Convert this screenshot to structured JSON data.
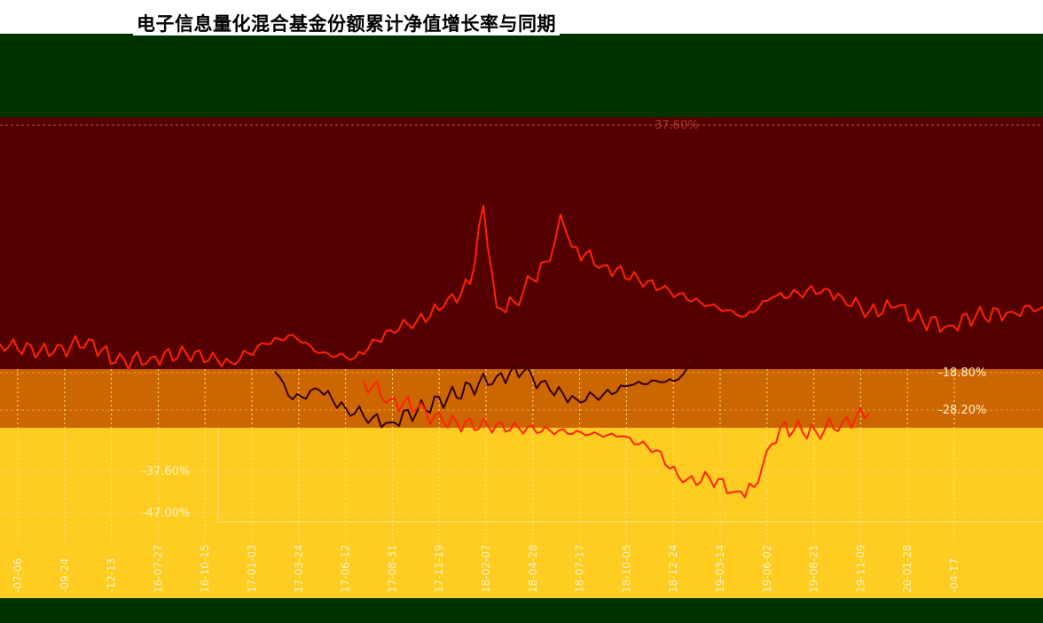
{
  "title": "电子信息量化混合基金份额累计净值增长率与同期",
  "colors": {
    "top_band": "#003300",
    "upper_band": "#550000",
    "middle_band": "#cc6600",
    "lower_band": "#ffcc22",
    "bottom_band": "#003300",
    "fund_line": "#ff2200",
    "benchmark_line": "#330000",
    "gridline": "#ffe58a"
  },
  "chart_data": {
    "type": "line",
    "title": "电子信息量化混合基金份额累计净值增长率与同期",
    "xlabel": "",
    "ylabel": "",
    "ylim": [
      -47.0,
      37.6
    ],
    "y_ticks": [
      "37.60%",
      "-18.80%",
      "-28.20%",
      "-37.60%",
      "-47.00%"
    ],
    "x_ticks": [
      {
        "year": "",
        "date": "-07-06"
      },
      {
        "year": "",
        "date": "-09-24"
      },
      {
        "year": "",
        "date": "-12-13"
      },
      {
        "year": "20",
        "date": "16-07-27"
      },
      {
        "year": "20",
        "date": "16-10-15"
      },
      {
        "year": "20",
        "date": "17-01-03"
      },
      {
        "year": "20",
        "date": "17-03-24"
      },
      {
        "year": "20",
        "date": "17-06-12"
      },
      {
        "year": "20",
        "date": "17-08-31"
      },
      {
        "year": "",
        "date": "17-11-19"
      },
      {
        "year": "",
        "date": "18-02-07"
      },
      {
        "year": "",
        "date": "18-04-28"
      },
      {
        "year": "",
        "date": "18-07-17"
      },
      {
        "year": "",
        "date": "18-10-05"
      },
      {
        "year": "",
        "date": "18-12-24"
      },
      {
        "year": "",
        "date": "19-03-14"
      },
      {
        "year": "",
        "date": "19-06-02"
      },
      {
        "year": "",
        "date": "19-08-21"
      },
      {
        "year": "",
        "date": "19-11-09"
      },
      {
        "year": "",
        "date": "20-01-28"
      },
      {
        "year": "",
        "date": "-04-17"
      }
    ],
    "series": [
      {
        "values": [
          [
            0,
            -10
          ],
          [
            60,
            -12
          ],
          [
            100,
            -9
          ],
          [
            130,
            -14
          ],
          [
            170,
            -13
          ],
          [
            210,
            -12
          ],
          [
            260,
            -14
          ],
          [
            300,
            -10
          ],
          [
            330,
            -8
          ],
          [
            360,
            -12
          ],
          [
            400,
            -13
          ],
          [
            440,
            -7
          ],
          [
            470,
            -5
          ],
          [
            500,
            -2
          ],
          [
            530,
            3
          ],
          [
            545,
            20
          ],
          [
            560,
            -2
          ],
          [
            580,
            -1
          ],
          [
            600,
            4
          ],
          [
            620,
            8
          ],
          [
            632,
            18
          ],
          [
            645,
            11
          ],
          [
            680,
            7
          ],
          [
            720,
            4
          ],
          [
            745,
            2
          ],
          [
            790,
            -1
          ],
          [
            840,
            -4
          ],
          [
            870,
            0
          ],
          [
            900,
            1
          ],
          [
            930,
            2
          ],
          [
            950,
            0
          ],
          [
            980,
            -3
          ],
          [
            1010,
            -2
          ],
          [
            1040,
            -5
          ],
          [
            1070,
            -6
          ],
          [
            1100,
            -4
          ],
          [
            1140,
            -3
          ],
          [
            1176,
            -2
          ]
        ]
      },
      {
        "values": [
          [
            310,
            -16
          ],
          [
            330,
            -22
          ],
          [
            360,
            -20
          ],
          [
            390,
            -24
          ],
          [
            420,
            -26
          ],
          [
            440,
            -27
          ],
          [
            560,
            -17
          ],
          [
            590,
            -16
          ],
          [
            620,
            -20
          ],
          [
            650,
            -22
          ],
          [
            680,
            -21
          ],
          [
            710,
            -19
          ],
          [
            740,
            -18
          ],
          [
            760,
            -18
          ],
          [
            780,
            -15
          ]
        ]
      },
      {
        "values": [
          [
            410,
            -18
          ],
          [
            440,
            -22
          ],
          [
            470,
            -24
          ],
          [
            500,
            -27
          ],
          [
            700,
            -30
          ],
          [
            740,
            -33
          ],
          [
            770,
            -40
          ],
          [
            800,
            -39
          ],
          [
            830,
            -42
          ],
          [
            850,
            -41
          ],
          [
            865,
            -33
          ],
          [
            880,
            -28
          ],
          [
            920,
            -29
          ],
          [
            950,
            -27
          ],
          [
            980,
            -25
          ]
        ]
      }
    ]
  }
}
